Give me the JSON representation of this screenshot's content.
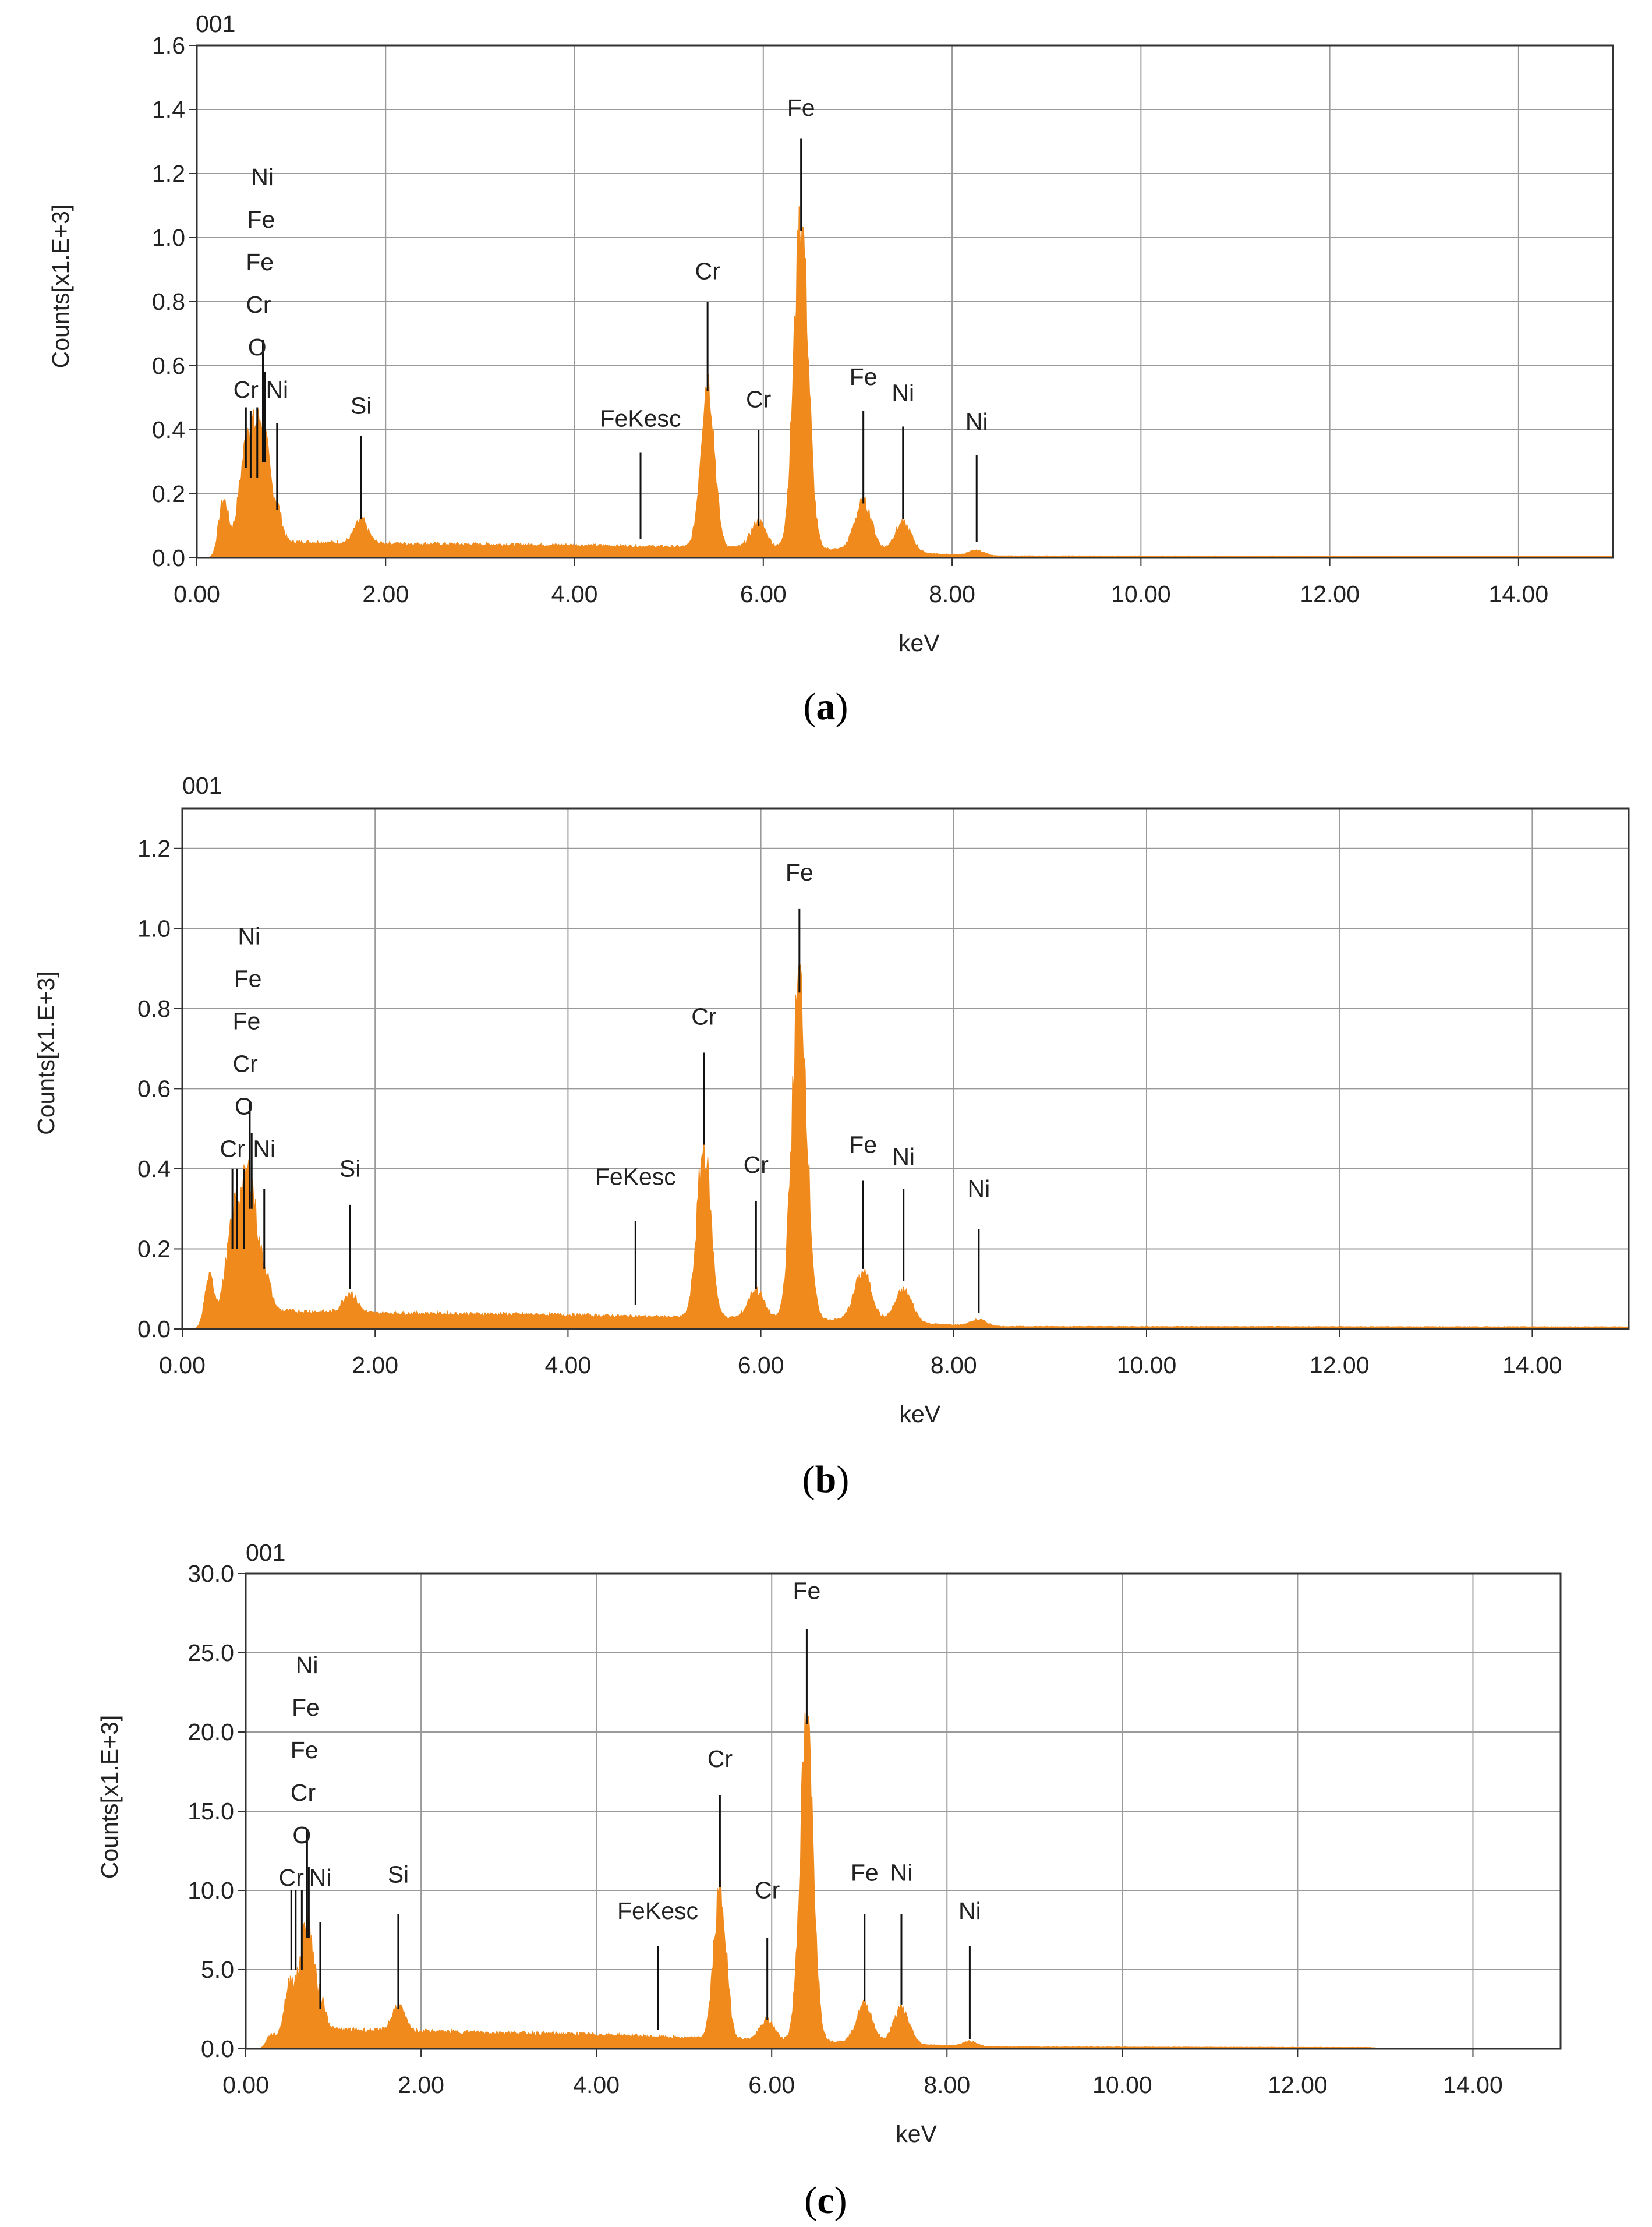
{
  "figure": {
    "bar_color": "#F08A1C",
    "panels": [
      {
        "caption_open": "(",
        "caption_letter": "a",
        "caption_close": ")"
      },
      {
        "caption_open": "(",
        "caption_letter": "b",
        "caption_close": ")"
      },
      {
        "caption_open": "(",
        "caption_letter": "c",
        "caption_close": ")"
      }
    ]
  },
  "chart_data": [
    {
      "type": "area",
      "sample_label": "001",
      "xlabel": "keV",
      "ylabel": "Counts[x1.E+3]",
      "xlim": [
        0,
        15
      ],
      "ylim": [
        0,
        1.6
      ],
      "grid": true,
      "x_ticks": [
        "0.00",
        "2.00",
        "4.00",
        "6.00",
        "8.00",
        "10.00",
        "12.00",
        "14.00"
      ],
      "y_ticks": [
        "0.0",
        "0.2",
        "0.4",
        "0.6",
        "0.8",
        "1.0",
        "1.2",
        "1.4",
        "1.6"
      ],
      "peaks": [
        {
          "x": 0.28,
          "h": 0.16,
          "w": 0.05
        },
        {
          "x": 0.52,
          "h": 0.26,
          "w": 0.07
        },
        {
          "x": 0.57,
          "h": 0.12,
          "w": 0.04
        },
        {
          "x": 0.64,
          "h": 0.12,
          "w": 0.04
        },
        {
          "x": 0.71,
          "h": 0.32,
          "w": 0.06
        },
        {
          "x": 0.85,
          "h": 0.1,
          "w": 0.05
        },
        {
          "x": 1.74,
          "h": 0.07,
          "w": 0.07
        },
        {
          "x": 5.41,
          "h": 0.52,
          "w": 0.07
        },
        {
          "x": 5.95,
          "h": 0.08,
          "w": 0.08
        },
        {
          "x": 6.4,
          "h": 1.02,
          "w": 0.075
        },
        {
          "x": 7.06,
          "h": 0.15,
          "w": 0.09
        },
        {
          "x": 7.48,
          "h": 0.09,
          "w": 0.09
        },
        {
          "x": 8.26,
          "h": 0.015,
          "w": 0.08
        }
      ],
      "background": [
        [
          0.2,
          0.0
        ],
        [
          0.45,
          0.06
        ],
        [
          1.0,
          0.05
        ],
        [
          2.0,
          0.045
        ],
        [
          4.0,
          0.04
        ],
        [
          5.0,
          0.035
        ],
        [
          6.5,
          0.03
        ],
        [
          8.0,
          0.01
        ],
        [
          8.5,
          0.006
        ],
        [
          15.0,
          0.005
        ]
      ],
      "annotations": [
        {
          "text": "Cr",
          "x": 0.52,
          "line_top": 0.47,
          "line_bottom": 0.28,
          "label_y": 0.5
        },
        {
          "text": "O",
          "x": 0.57,
          "line_top": 0.46,
          "line_bottom": 0.25
        },
        {
          "text": "Cr",
          "x": 0.64,
          "line_top": 0.47,
          "line_bottom": 0.25
        },
        {
          "text": "Fe",
          "x": 0.7,
          "line_top": 0.68,
          "line_bottom": 0.3
        },
        {
          "text": "Fe",
          "x": 0.72,
          "line_top": 0.58,
          "line_bottom": 0.3
        },
        {
          "text": "Ni",
          "x": 0.85,
          "line_top": 0.42,
          "line_bottom": 0.15,
          "label_y": 0.5
        },
        {
          "text": "Si",
          "x": 1.74,
          "line_top": 0.38,
          "line_bottom": 0.12,
          "label_y": 0.45
        },
        {
          "text": "FeKesc",
          "x": 4.7,
          "line_top": 0.33,
          "line_bottom": 0.06,
          "label_y": 0.41
        },
        {
          "text": "Cr",
          "x": 5.41,
          "line_top": 0.8,
          "line_bottom": 0.52,
          "label_y": 0.87
        },
        {
          "text": "Cr",
          "x": 5.95,
          "line_top": 0.4,
          "line_bottom": 0.1,
          "label_y": 0.47
        },
        {
          "text": "Fe",
          "x": 6.4,
          "line_top": 1.31,
          "line_bottom": 1.02,
          "label_y": 1.38
        },
        {
          "text": "Fe",
          "x": 7.06,
          "line_top": 0.46,
          "line_bottom": 0.17,
          "label_y": 0.54
        },
        {
          "text": "Ni",
          "x": 7.48,
          "line_top": 0.41,
          "line_bottom": 0.12,
          "label_y": 0.49
        },
        {
          "text": "Ni",
          "x": 8.26,
          "line_top": 0.32,
          "line_bottom": 0.05,
          "label_y": 0.4
        }
      ],
      "stack_labels": [
        "O",
        "Cr",
        "Fe",
        "Fe",
        "Ni"
      ]
    },
    {
      "type": "area",
      "sample_label": "001",
      "xlabel": "keV",
      "ylabel": "Counts[x1.E+3]",
      "xlim": [
        0,
        15
      ],
      "ylim": [
        0,
        1.3
      ],
      "grid": true,
      "x_ticks": [
        "0.00",
        "2.00",
        "4.00",
        "6.00",
        "8.00",
        "10.00",
        "12.00",
        "14.00"
      ],
      "y_ticks": [
        "0.0",
        "0.2",
        "0.4",
        "0.6",
        "0.8",
        "1.0",
        "1.2"
      ],
      "peaks": [
        {
          "x": 0.28,
          "h": 0.11,
          "w": 0.05
        },
        {
          "x": 0.52,
          "h": 0.18,
          "w": 0.07
        },
        {
          "x": 0.57,
          "h": 0.1,
          "w": 0.04
        },
        {
          "x": 0.64,
          "h": 0.1,
          "w": 0.04
        },
        {
          "x": 0.71,
          "h": 0.3,
          "w": 0.06
        },
        {
          "x": 0.85,
          "h": 0.1,
          "w": 0.06
        },
        {
          "x": 1.74,
          "h": 0.05,
          "w": 0.07
        },
        {
          "x": 5.41,
          "h": 0.42,
          "w": 0.07
        },
        {
          "x": 5.95,
          "h": 0.07,
          "w": 0.08
        },
        {
          "x": 6.4,
          "h": 0.84,
          "w": 0.075
        },
        {
          "x": 7.06,
          "h": 0.12,
          "w": 0.09
        },
        {
          "x": 7.48,
          "h": 0.08,
          "w": 0.09
        },
        {
          "x": 8.26,
          "h": 0.015,
          "w": 0.08
        }
      ],
      "background": [
        [
          0.2,
          0.0
        ],
        [
          0.45,
          0.05
        ],
        [
          1.0,
          0.045
        ],
        [
          2.0,
          0.04
        ],
        [
          4.0,
          0.035
        ],
        [
          5.0,
          0.03
        ],
        [
          6.5,
          0.025
        ],
        [
          8.0,
          0.01
        ],
        [
          8.5,
          0.006
        ],
        [
          15.0,
          0.005
        ]
      ],
      "annotations": [
        {
          "text": "Cr",
          "x": 0.52,
          "line_top": 0.4,
          "line_bottom": 0.2,
          "label_y": 0.43
        },
        {
          "text": "O",
          "x": 0.57,
          "line_top": 0.4,
          "line_bottom": 0.2
        },
        {
          "text": "Cr",
          "x": 0.64,
          "line_top": 0.4,
          "line_bottom": 0.2
        },
        {
          "text": "Fe",
          "x": 0.7,
          "line_top": 0.57,
          "line_bottom": 0.3
        },
        {
          "text": "Fe",
          "x": 0.72,
          "line_top": 0.49,
          "line_bottom": 0.3
        },
        {
          "text": "Ni",
          "x": 0.85,
          "line_top": 0.35,
          "line_bottom": 0.15,
          "label_y": 0.43
        },
        {
          "text": "Si",
          "x": 1.74,
          "line_top": 0.31,
          "line_bottom": 0.1,
          "label_y": 0.38
        },
        {
          "text": "FeKesc",
          "x": 4.7,
          "line_top": 0.27,
          "line_bottom": 0.06,
          "label_y": 0.36
        },
        {
          "text": "Cr",
          "x": 5.41,
          "line_top": 0.69,
          "line_bottom": 0.46,
          "label_y": 0.76
        },
        {
          "text": "Cr",
          "x": 5.95,
          "line_top": 0.32,
          "line_bottom": 0.1,
          "label_y": 0.39
        },
        {
          "text": "Fe",
          "x": 6.4,
          "line_top": 1.05,
          "line_bottom": 0.84,
          "label_y": 1.12
        },
        {
          "text": "Fe",
          "x": 7.06,
          "line_top": 0.37,
          "line_bottom": 0.15,
          "label_y": 0.44
        },
        {
          "text": "Ni",
          "x": 7.48,
          "line_top": 0.35,
          "line_bottom": 0.12,
          "label_y": 0.41
        },
        {
          "text": "Ni",
          "x": 8.26,
          "line_top": 0.25,
          "line_bottom": 0.04,
          "label_y": 0.33
        }
      ],
      "stack_labels": [
        "O",
        "Cr",
        "Fe",
        "Fe",
        "Ni"
      ]
    },
    {
      "type": "area",
      "sample_label": "001",
      "xlabel": "keV",
      "ylabel": "Counts[x1.E+3]",
      "xlim": [
        0,
        15
      ],
      "ylim": [
        0,
        30.0
      ],
      "grid": true,
      "x_ticks": [
        "0.00",
        "2.00",
        "4.00",
        "6.00",
        "8.00",
        "10.00",
        "12.00",
        "14.00"
      ],
      "y_ticks": [
        "0.0",
        "5.0",
        "10.0",
        "15.0",
        "20.0",
        "25.0",
        "30.0"
      ],
      "peaks": [
        {
          "x": 0.28,
          "h": 0.6,
          "w": 0.05
        },
        {
          "x": 0.52,
          "h": 3.5,
          "w": 0.07
        },
        {
          "x": 0.64,
          "h": 1.5,
          "w": 0.04
        },
        {
          "x": 0.71,
          "h": 6.5,
          "w": 0.06
        },
        {
          "x": 0.85,
          "h": 2.0,
          "w": 0.06
        },
        {
          "x": 1.74,
          "h": 1.6,
          "w": 0.07
        },
        {
          "x": 5.41,
          "h": 9.2,
          "w": 0.07
        },
        {
          "x": 5.95,
          "h": 1.2,
          "w": 0.08
        },
        {
          "x": 6.4,
          "h": 19.6,
          "w": 0.075
        },
        {
          "x": 7.06,
          "h": 2.4,
          "w": 0.09
        },
        {
          "x": 7.48,
          "h": 2.2,
          "w": 0.09
        },
        {
          "x": 8.26,
          "h": 0.3,
          "w": 0.08
        }
      ],
      "background": [
        [
          0.2,
          0.0
        ],
        [
          0.45,
          0.8
        ],
        [
          1.0,
          1.2
        ],
        [
          2.0,
          1.1
        ],
        [
          4.0,
          0.9
        ],
        [
          5.0,
          0.7
        ],
        [
          6.5,
          0.5
        ],
        [
          8.0,
          0.2
        ],
        [
          8.5,
          0.12
        ],
        [
          12.8,
          0.08
        ],
        [
          13.0,
          0.02
        ],
        [
          15.0,
          0.02
        ]
      ],
      "annotations": [
        {
          "text": "Cr",
          "x": 0.52,
          "line_top": 10.0,
          "line_bottom": 5.0,
          "label_y": 10.3
        },
        {
          "text": "O",
          "x": 0.57,
          "line_top": 10.0,
          "line_bottom": 5.0
        },
        {
          "text": "Cr",
          "x": 0.64,
          "line_top": 10.0,
          "line_bottom": 5.0
        },
        {
          "text": "Fe",
          "x": 0.7,
          "line_top": 13.8,
          "line_bottom": 7.0
        },
        {
          "text": "Fe",
          "x": 0.72,
          "line_top": 11.5,
          "line_bottom": 7.0
        },
        {
          "text": "Ni",
          "x": 0.85,
          "line_top": 8.0,
          "line_bottom": 2.5,
          "label_y": 10.3
        },
        {
          "text": "Si",
          "x": 1.74,
          "line_top": 8.5,
          "line_bottom": 2.5,
          "label_y": 10.5
        },
        {
          "text": "FeKesc",
          "x": 4.7,
          "line_top": 6.5,
          "line_bottom": 1.2,
          "label_y": 8.2
        },
        {
          "text": "Cr",
          "x": 5.41,
          "line_top": 16.0,
          "line_bottom": 10.2,
          "label_y": 17.8
        },
        {
          "text": "Cr",
          "x": 5.95,
          "line_top": 7.0,
          "line_bottom": 1.8,
          "label_y": 9.5
        },
        {
          "text": "Fe",
          "x": 6.4,
          "line_top": 26.5,
          "line_bottom": 20.5,
          "label_y": 28.4
        },
        {
          "text": "Fe",
          "x": 7.06,
          "line_top": 8.5,
          "line_bottom": 3.0,
          "label_y": 10.6
        },
        {
          "text": "Ni",
          "x": 7.48,
          "line_top": 8.5,
          "line_bottom": 2.8,
          "label_y": 10.6
        },
        {
          "text": "Ni",
          "x": 8.26,
          "line_top": 6.5,
          "line_bottom": 0.6,
          "label_y": 8.2
        }
      ],
      "stack_labels": [
        "O",
        "Cr",
        "Fe",
        "Fe",
        "Ni"
      ]
    }
  ]
}
